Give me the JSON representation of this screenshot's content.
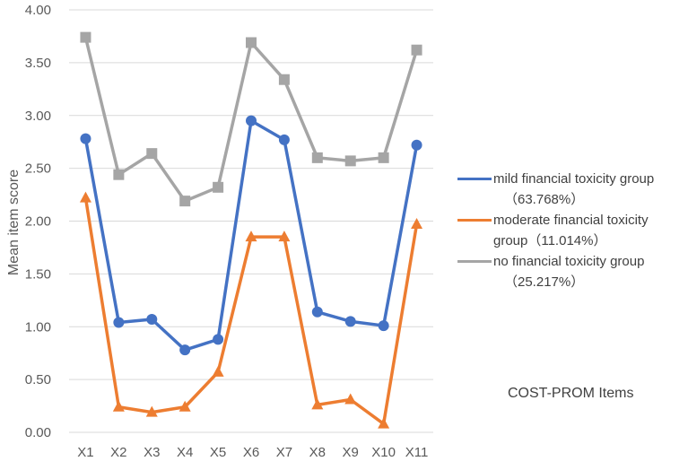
{
  "chart_data": {
    "type": "line",
    "title": "",
    "xlabel": "",
    "ylabel": "Mean item score",
    "ylim": [
      0,
      4
    ],
    "yticks": [
      "0.00",
      "0.50",
      "1.00",
      "1.50",
      "2.00",
      "2.50",
      "3.00",
      "3.50",
      "4.00"
    ],
    "grid": true,
    "legend_position": "right",
    "categories": [
      "X1",
      "X2",
      "X3",
      "X4",
      "X5",
      "X6",
      "X7",
      "X8",
      "X9",
      "X10",
      "X11"
    ],
    "series": [
      {
        "name": "mild financial toxicity group",
        "pct": "（63.768%）",
        "color": "#4472C4",
        "marker": "circle",
        "values": [
          2.78,
          1.04,
          1.07,
          0.78,
          0.88,
          2.95,
          2.77,
          1.14,
          1.05,
          1.01,
          2.72
        ]
      },
      {
        "name": "moderate financial toxicity",
        "name2": "group（11.014%）",
        "color": "#ED7D31",
        "marker": "triangle",
        "values": [
          2.22,
          0.24,
          0.19,
          0.24,
          0.57,
          1.85,
          1.85,
          0.26,
          0.31,
          0.08,
          1.97
        ]
      },
      {
        "name": "no financial toxicity group",
        "pct": "（25.217%）",
        "color": "#A5A5A5",
        "marker": "square",
        "values": [
          3.74,
          2.44,
          2.64,
          2.19,
          2.32,
          3.69,
          3.34,
          2.6,
          2.57,
          2.6,
          3.62
        ]
      }
    ],
    "annotation": "COST-PROM Items"
  }
}
